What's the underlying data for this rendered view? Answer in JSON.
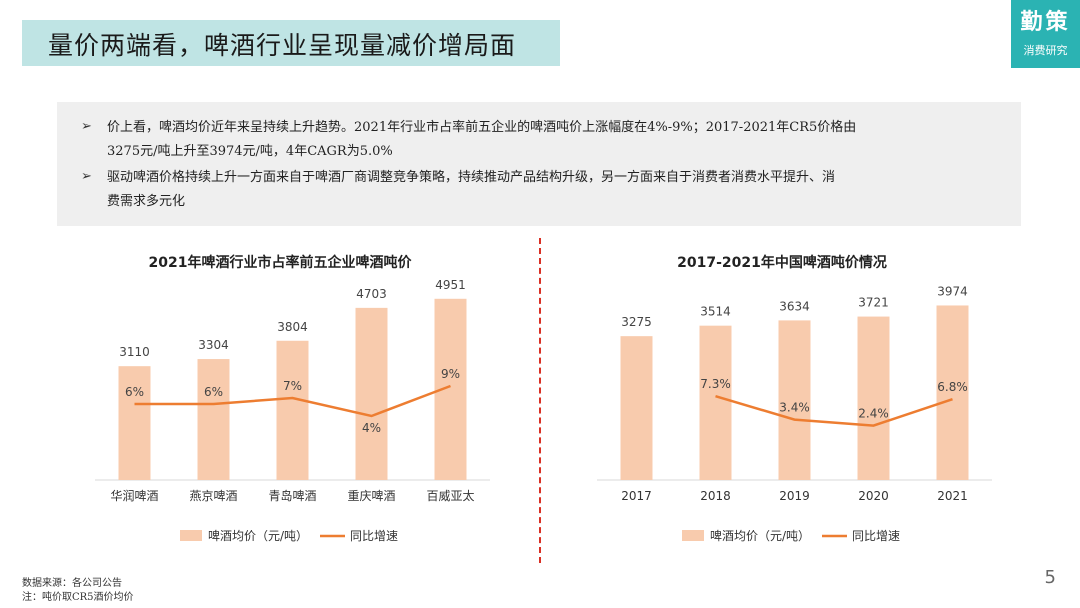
{
  "header": {
    "title": "量价两端看，啤酒行业呈现量减价增局面",
    "logo_main": "勤策",
    "logo_sub": "消费研究"
  },
  "summary": {
    "bullets": [
      {
        "marker": "➢",
        "line1": "价上看，啤酒均价近年来呈持续上升趋势。2021年行业市占率前五企业的啤酒吨价上涨幅度在4%-9%；2017-2021年CR5价格由",
        "line2": "3275元/吨上升至3974元/吨，4年CAGR为5.0%"
      },
      {
        "marker": "➢",
        "line1": "驱动啤酒价格持续上升一方面来自于啤酒厂商调整竞争策略，持续推动产品结构升级，另一方面来自于消费者消费水平提升、消",
        "line2": "费需求多元化"
      }
    ]
  },
  "chart_data": [
    {
      "type": "bar+line",
      "title": "2021年啤酒行业市占率前五企业啤酒吨价",
      "categories": [
        "华润啤酒",
        "燕京啤酒",
        "青岛啤酒",
        "重庆啤酒",
        "百威亚太"
      ],
      "series": [
        {
          "name": "啤酒均价（元/吨）",
          "kind": "bar",
          "values": [
            3110,
            3304,
            3804,
            4703,
            4951
          ],
          "labels": [
            "3110",
            "3304",
            "3804",
            "4703",
            "4951"
          ],
          "color": "#f8cbad"
        },
        {
          "name": "同比增速",
          "kind": "line",
          "values": [
            6,
            6,
            7,
            4,
            9
          ],
          "labels": [
            "6%",
            "6%",
            "7%",
            "4%",
            "9%"
          ],
          "color": "#ed7d31"
        }
      ],
      "bar_ylim": [
        0,
        6000
      ],
      "line_ylim": [
        -10,
        20
      ],
      "legend": [
        "啤酒均价（元/吨）",
        "同比增速"
      ]
    },
    {
      "type": "bar+line",
      "title": "2017-2021年中国啤酒吨价情况",
      "categories": [
        "2017",
        "2018",
        "2019",
        "2020",
        "2021"
      ],
      "series": [
        {
          "name": "啤酒均价（元/吨）",
          "kind": "bar",
          "values": [
            3275,
            3514,
            3634,
            3721,
            3974
          ],
          "labels": [
            "3275",
            "3514",
            "3634",
            "3721",
            "3974"
          ],
          "color": "#f8cbad"
        },
        {
          "name": "同比增速",
          "kind": "line",
          "values": [
            null,
            7.3,
            3.4,
            2.4,
            6.8
          ],
          "labels": [
            "",
            "7.3%",
            "3.4%",
            "2.4%",
            "6.8%"
          ],
          "color": "#ed7d31"
        }
      ],
      "bar_ylim": [
        0,
        5000
      ],
      "line_ylim": [
        -10,
        20
      ],
      "legend": [
        "啤酒均价（元/吨）",
        "同比增速"
      ]
    }
  ],
  "footer": {
    "source": "数据来源：各公司公告",
    "note": "注：吨价取CR5酒价均价",
    "page": "5"
  }
}
